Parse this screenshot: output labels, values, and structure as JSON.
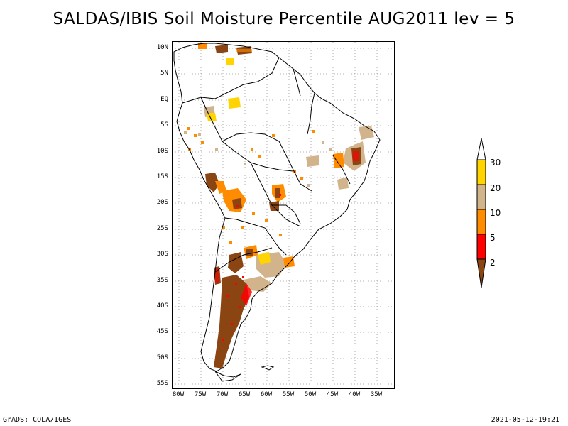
{
  "title": "SALDAS/IBIS Soil Moisture Percentile AUG2011 lev = 5",
  "lat_labels": [
    "10N",
    "5N",
    "EQ",
    "5S",
    "10S",
    "15S",
    "20S",
    "25S",
    "30S",
    "35S",
    "40S",
    "45S",
    "50S",
    "55S"
  ],
  "lon_labels": [
    "80W",
    "75W",
    "70W",
    "65W",
    "60W",
    "55W",
    "50W",
    "45W",
    "40W",
    "35W"
  ],
  "colorbar": {
    "labels": [
      "30",
      "20",
      "10",
      "5",
      "2"
    ],
    "colors": {
      "gt30": "#ffffff",
      "20-30": "#ffd400",
      "10-20": "#d2b48c",
      "5-10": "#ff8c00",
      "2-5": "#ff0000",
      "lt2": "#8b4513"
    }
  },
  "footer": {
    "left": "GrADS: COLA/IGES",
    "right": "2021-05-12-19:21"
  }
}
